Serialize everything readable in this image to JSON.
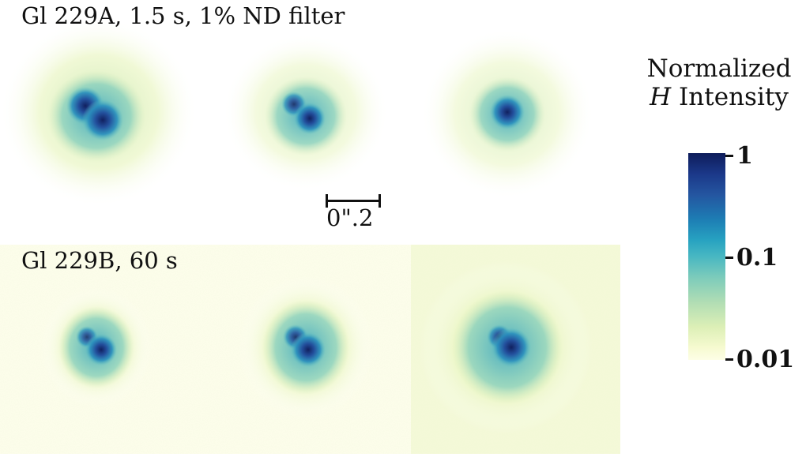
{
  "panel_a": {
    "label": "Gl 229A, 1.5 s, 1% ND filter"
  },
  "panel_b": {
    "label": "Gl 229B, 60 s"
  },
  "scalebar": {
    "label": "0\".2"
  },
  "colorbar": {
    "title_line1": "Normalized",
    "title_italic": "H",
    "title_rest": " Intensity",
    "ticks": [
      "1",
      "0.1",
      "0.01"
    ],
    "scale": "log",
    "colormap": "YlGnBu",
    "colors": [
      "#0e1c5a",
      "#2455a0",
      "#27a2c1",
      "#7ccbbb",
      "#dcefb6",
      "#fdfee6"
    ]
  }
}
